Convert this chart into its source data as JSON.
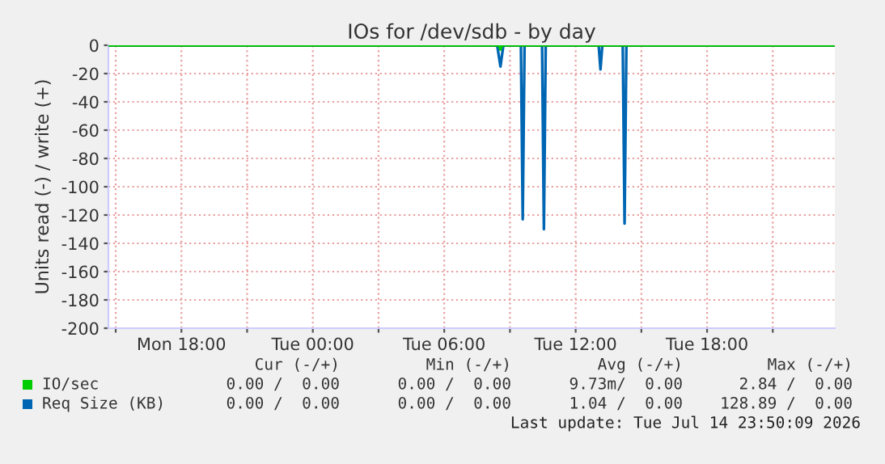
{
  "chart_data": {
    "type": "line",
    "title": "IOs for /dev/sdb - by day",
    "ylabel": "Units read (-) / write (+)",
    "xlim": [
      "2026-07-13T14:40",
      "2026-07-14T23:50"
    ],
    "xticks": [
      {
        "value": "2026-07-13T15:00",
        "label": null
      },
      {
        "value": "2026-07-13T18:00",
        "label": "Mon 18:00"
      },
      {
        "value": "2026-07-13T21:00",
        "label": null
      },
      {
        "value": "2026-07-14T00:00",
        "label": "Tue 00:00"
      },
      {
        "value": "2026-07-14T03:00",
        "label": null
      },
      {
        "value": "2026-07-14T06:00",
        "label": "Tue 06:00"
      },
      {
        "value": "2026-07-14T09:00",
        "label": null
      },
      {
        "value": "2026-07-14T12:00",
        "label": "Tue 12:00"
      },
      {
        "value": "2026-07-14T15:00",
        "label": null
      },
      {
        "value": "2026-07-14T18:00",
        "label": "Tue 18:00"
      },
      {
        "value": "2026-07-14T21:00",
        "label": null
      }
    ],
    "ylim": [
      -200,
      0
    ],
    "yticks": [
      -200,
      -180,
      -160,
      -140,
      -120,
      -100,
      -80,
      -60,
      -40,
      -20,
      0
    ],
    "grid": true,
    "legend": "bottom",
    "ref_lines": [
      {
        "axis": "y",
        "value": 0,
        "color": "#000000"
      }
    ],
    "series": [
      {
        "name": "IO/sec",
        "color": "#00cc00",
        "x": [
          "2026-07-13T14:40",
          "2026-07-14T08:30",
          "2026-07-14T08:34",
          "2026-07-14T08:38",
          "2026-07-14T23:50"
        ],
        "values": [
          0,
          0,
          -3,
          0,
          0
        ]
      },
      {
        "name": "Req Size (KB)",
        "color": "#0066b3",
        "x": [
          "2026-07-13T14:40",
          "2026-07-14T08:25",
          "2026-07-14T08:34",
          "2026-07-14T08:42",
          "2026-07-14T09:30",
          "2026-07-14T09:35",
          "2026-07-14T09:40",
          "2026-07-14T10:28",
          "2026-07-14T10:33",
          "2026-07-14T10:38",
          "2026-07-14T13:03",
          "2026-07-14T13:08",
          "2026-07-14T13:13",
          "2026-07-14T14:09",
          "2026-07-14T14:14",
          "2026-07-14T14:19",
          "2026-07-14T23:50"
        ],
        "values": [
          0,
          0,
          -15,
          0,
          0,
          -123,
          0,
          0,
          -130,
          0,
          0,
          -17,
          0,
          0,
          -126,
          0,
          0
        ]
      }
    ],
    "annotations": [
      "Cur (-/+)",
      "Min (-/+)",
      "Avg (-/+)",
      "Max (-/+)",
      "0.00 /  0.00",
      "0.00 /  0.00",
      "9.73m/  0.00",
      "2.84 /  0.00",
      "0.00 /  0.00",
      "0.00 /  0.00",
      "1.04 /  0.00",
      "128.89 /  0.00",
      "Last update: Tue Jul 14 23:50:09 2026"
    ]
  }
}
